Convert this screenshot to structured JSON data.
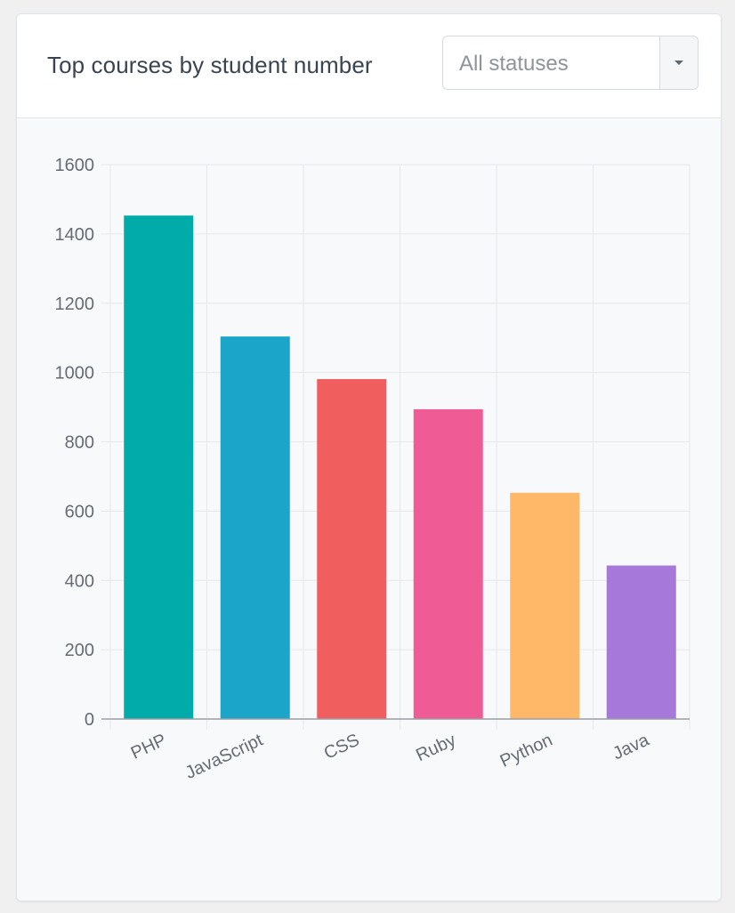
{
  "header": {
    "title": "Top courses by student number",
    "status_select": {
      "value": "All statuses",
      "caret_icon": "caret-down-icon"
    }
  },
  "chart_data": {
    "type": "bar",
    "categories": [
      "PHP",
      "JavaScript",
      "CSS",
      "Ruby",
      "Python",
      "Java"
    ],
    "values": [
      1453,
      1104,
      981,
      894,
      653,
      443
    ],
    "colors": [
      "#00aba9",
      "#1ba6c9",
      "#f05e5e",
      "#ee5b95",
      "#ffb867",
      "#a678da"
    ],
    "ylim": [
      0,
      1600
    ],
    "yticks": [
      0,
      200,
      400,
      600,
      800,
      1000,
      1200,
      1400,
      1600
    ],
    "grid": true,
    "legend": "none",
    "title": "",
    "xlabel": "",
    "ylabel": ""
  }
}
